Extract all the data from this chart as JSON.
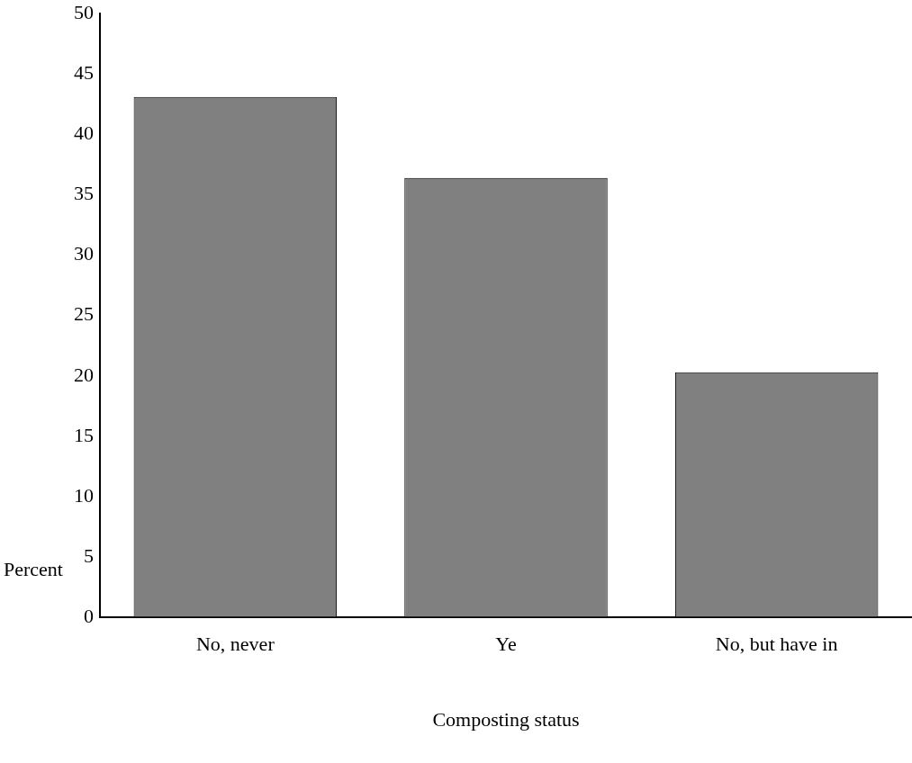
{
  "chart_data": {
    "type": "bar",
    "xlabel": "Composting status",
    "ylabel": "Percent",
    "categories": [
      "No, never",
      "Ye",
      "No, but have in"
    ],
    "values": [
      43.1,
      36.4,
      20.3
    ],
    "color": "#808080",
    "ylim": [
      0,
      50
    ],
    "yticks": [
      0,
      5,
      10,
      15,
      20,
      25,
      30,
      35,
      40,
      45,
      50
    ],
    "grid": false,
    "legend": false
  }
}
